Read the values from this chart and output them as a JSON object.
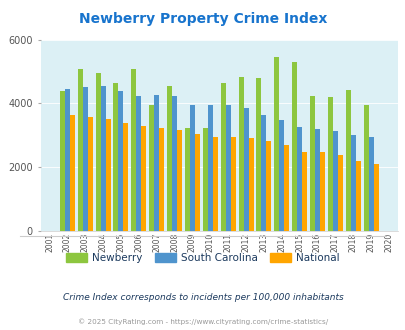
{
  "title": "Newberry Property Crime Index",
  "title_color": "#1874CD",
  "years": [
    2001,
    2002,
    2003,
    2004,
    2005,
    2006,
    2007,
    2008,
    2009,
    2010,
    2011,
    2012,
    2013,
    2014,
    2015,
    2016,
    2017,
    2018,
    2019,
    2020
  ],
  "newberry": [
    null,
    4380,
    5080,
    4960,
    4650,
    5090,
    3960,
    4540,
    3220,
    3220,
    4630,
    4840,
    4790,
    5470,
    5290,
    4230,
    4200,
    4430,
    3960,
    null
  ],
  "south_carolina": [
    null,
    4450,
    4500,
    4530,
    4380,
    4240,
    4260,
    4240,
    3950,
    3940,
    3950,
    3860,
    3630,
    3490,
    3260,
    3200,
    3150,
    3000,
    2940,
    null
  ],
  "national": [
    null,
    3640,
    3560,
    3510,
    3390,
    3290,
    3230,
    3160,
    3050,
    2960,
    2940,
    2900,
    2820,
    2690,
    2490,
    2490,
    2370,
    2200,
    2110,
    null
  ],
  "newberry_color": "#8DC63F",
  "sc_color": "#4F94CD",
  "national_color": "#FFA500",
  "bg_color": "#DCF0F5",
  "ylim": [
    0,
    6000
  ],
  "yticks": [
    0,
    2000,
    4000,
    6000
  ],
  "subtitle": "Crime Index corresponds to incidents per 100,000 inhabitants",
  "subtitle_color": "#1C3A5E",
  "footnote": "© 2025 CityRating.com - https://www.cityrating.com/crime-statistics/",
  "footnote_color": "#999999",
  "legend_labels": [
    "Newberry",
    "South Carolina",
    "National"
  ]
}
